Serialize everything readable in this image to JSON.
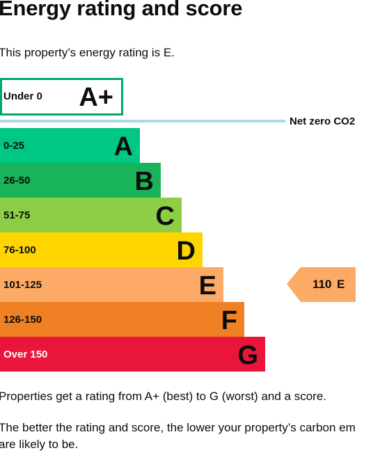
{
  "page": {
    "title": "Energy rating and score",
    "intro": "This property’s energy rating is E.",
    "footer_1": "Properties get a rating from A+ (best) to G (worst) and a score.",
    "footer_2_line_1": "The better the rating and score, the lower your property’s carbon em",
    "footer_2_line_2": "are likely to be."
  },
  "chart_data": {
    "type": "bar",
    "title": "",
    "highlight": {
      "band": "A+",
      "range": "Under 0",
      "color": "#00a86b"
    },
    "net_zero_label": "Net zero CO2",
    "net_zero_color": "#add8e6",
    "bands": [
      {
        "letter": "A",
        "range": "0-25",
        "color": "#00c781"
      },
      {
        "letter": "B",
        "range": "26-50",
        "color": "#19b459"
      },
      {
        "letter": "C",
        "range": "51-75",
        "color": "#8dce46"
      },
      {
        "letter": "D",
        "range": "76-100",
        "color": "#ffd500"
      },
      {
        "letter": "E",
        "range": "101-125",
        "color": "#fcaa65"
      },
      {
        "letter": "F",
        "range": "126-150",
        "color": "#ef8023"
      },
      {
        "letter": "G",
        "range": "Over 150",
        "color": "#e9153b"
      }
    ],
    "current": {
      "score": "110",
      "band": "E",
      "color": "#fcaa65"
    }
  }
}
